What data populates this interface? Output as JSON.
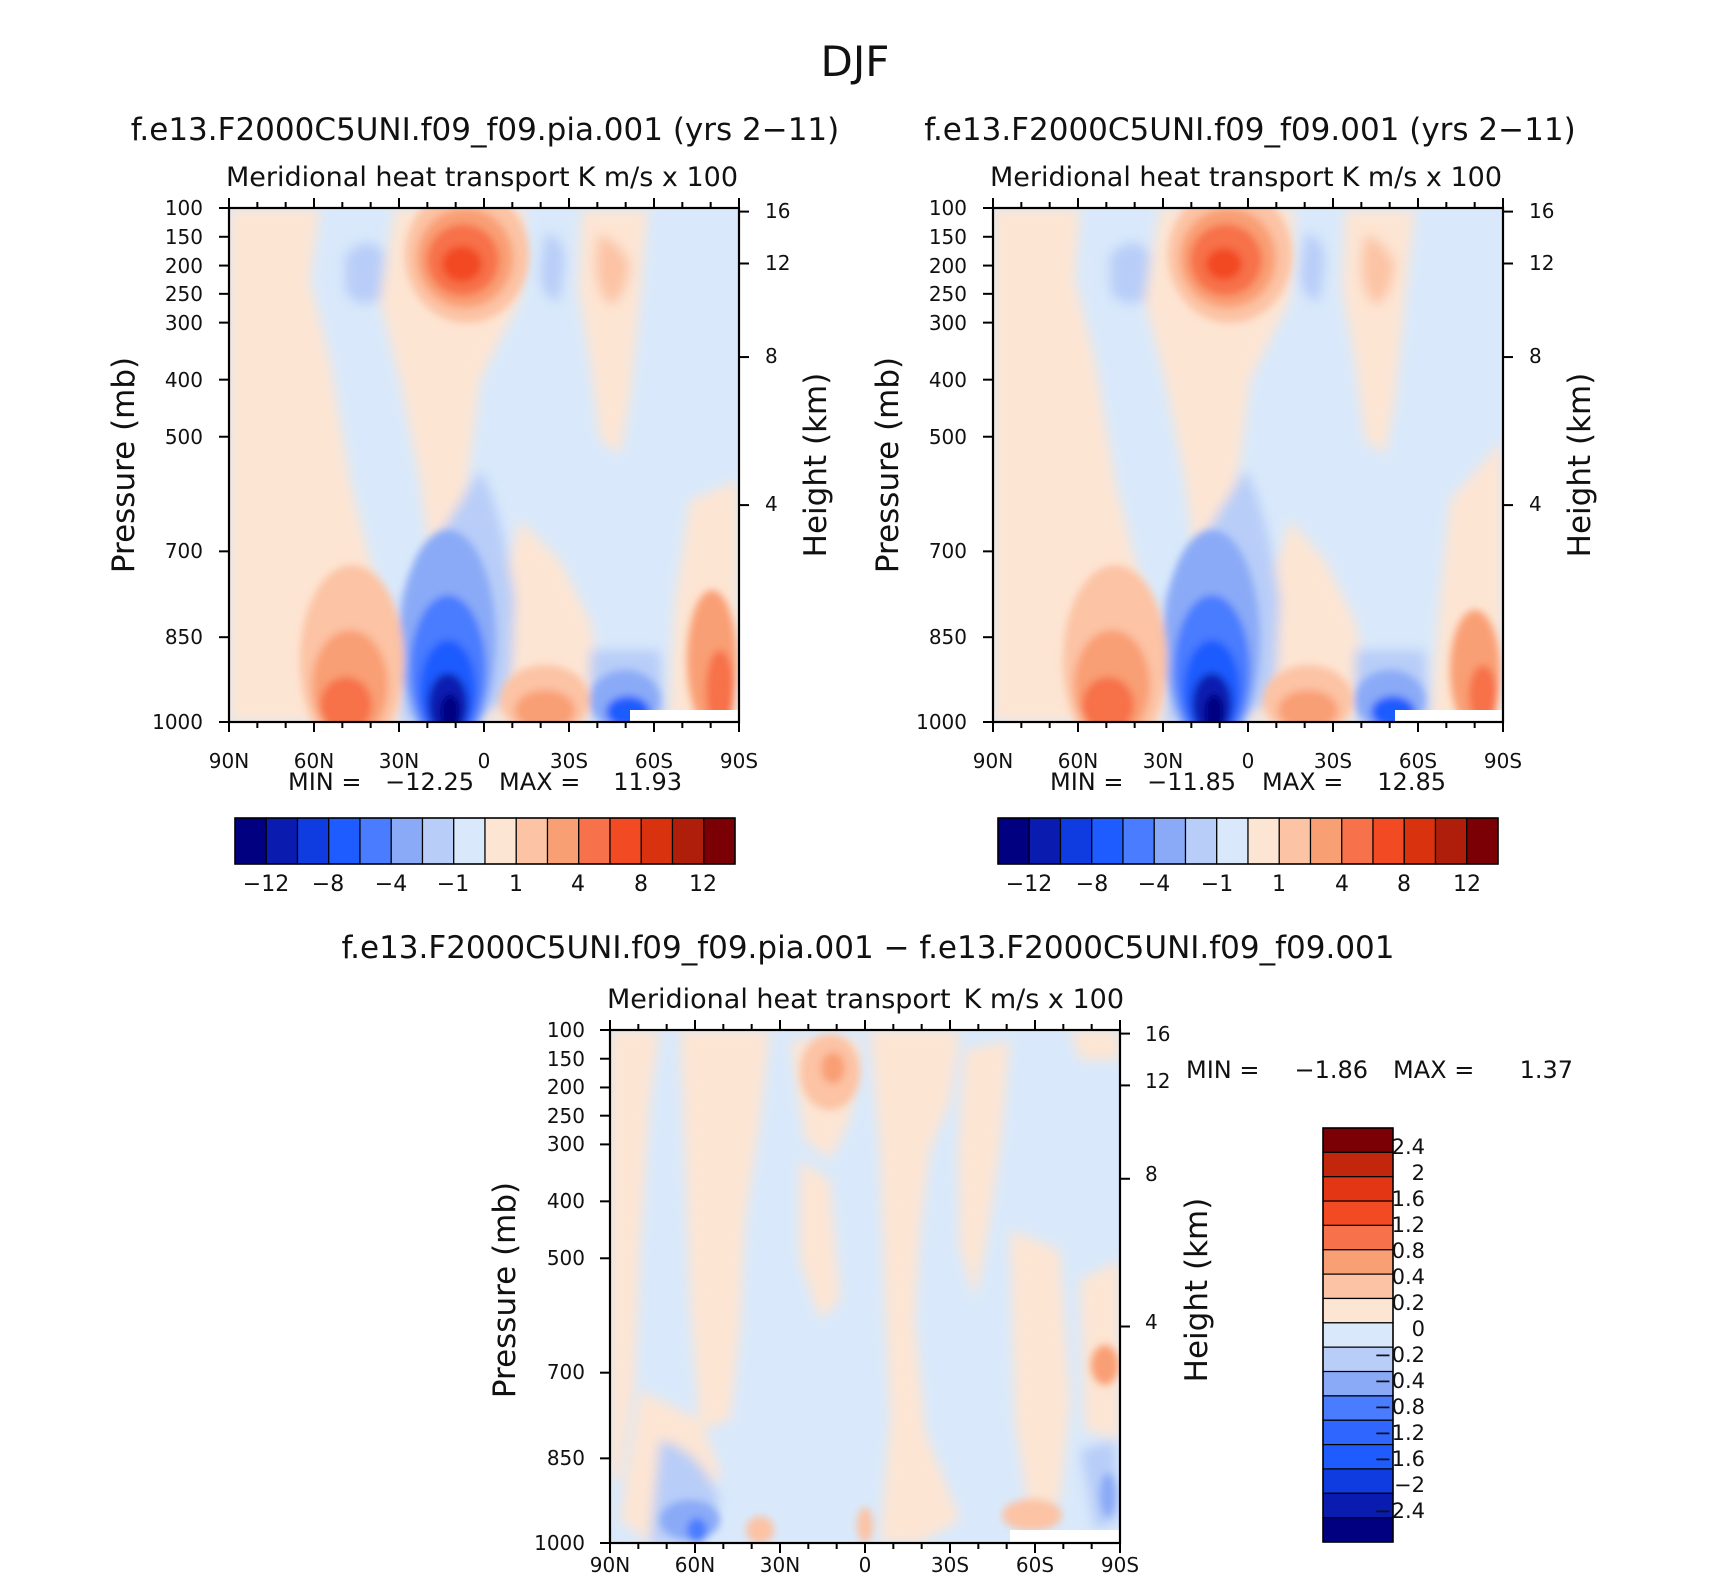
{
  "figure": {
    "title": "DJF"
  },
  "colors": {
    "levels13": [
      "#000080",
      "#0a1cb0",
      "#0f3ce0",
      "#1e5cff",
      "#4a7cff",
      "#8aaaf7",
      "#b8cdf8",
      "#d9e9fb",
      "#fde5d3",
      "#fcc3a4",
      "#f99f74",
      "#f7714a",
      "#f24a22",
      "#d8320f",
      "#ae1e0a",
      "#7a0006"
    ],
    "levels16": [
      "#000080",
      "#0a1cb0",
      "#0f3ce0",
      "#1e5cff",
      "#2f66ff",
      "#4a7cff",
      "#8aaaf7",
      "#b8cdf8",
      "#d9e9fb",
      "#fde5d3",
      "#fcc3a4",
      "#f99f74",
      "#f7714a",
      "#f24a22",
      "#e23614",
      "#c2260c",
      "#7a0006"
    ]
  },
  "chart_data": [
    {
      "type": "heatmap",
      "title": "f.e13.F2000C5UNI.f09_f09.pia.001 (yrs 2−11)",
      "subtitle_left": "Meridional heat transport",
      "subtitle_right": "K m/s x 100",
      "xlabel": "",
      "ylabel": "Pressure (mb)",
      "ylabel_right": "Height (km)",
      "x_ticks": [
        "90N",
        "60N",
        "30N",
        "0",
        "30S",
        "60S",
        "90S"
      ],
      "y_ticks": [
        "100",
        "150",
        "200",
        "250",
        "300",
        "400",
        "500",
        "700",
        "850",
        "1000"
      ],
      "y_right_ticks": [
        "16",
        "12",
        "8",
        "4"
      ],
      "stats": {
        "min_label": "MIN =",
        "min": "−12.25",
        "max_label": "MAX =",
        "max": "11.93"
      },
      "colorbar_labels": [
        "−12",
        "−8",
        "−4",
        "−1",
        "1",
        "4",
        "8",
        "12"
      ],
      "features": [
        {
          "lat": 5,
          "p": 200,
          "value": 9
        },
        {
          "lat": 10,
          "p": 950,
          "value": -12
        },
        {
          "lat": 45,
          "p": 960,
          "value": 8
        },
        {
          "lat": -25,
          "p": 980,
          "value": 6
        },
        {
          "lat": -50,
          "p": 980,
          "value": -6
        },
        {
          "lat": -53,
          "p": 220,
          "value": 3
        },
        {
          "lat": 35,
          "p": 200,
          "value": -3
        }
      ]
    },
    {
      "type": "heatmap",
      "title": "f.e13.F2000C5UNI.f09_f09.001 (yrs 2−11)",
      "subtitle_left": "Meridional heat transport",
      "subtitle_right": "K m/s x 100",
      "xlabel": "",
      "ylabel": "Pressure (mb)",
      "ylabel_right": "Height (km)",
      "x_ticks": [
        "90N",
        "60N",
        "30N",
        "0",
        "30S",
        "60S",
        "90S"
      ],
      "y_ticks": [
        "100",
        "150",
        "200",
        "250",
        "300",
        "400",
        "500",
        "700",
        "850",
        "1000"
      ],
      "y_right_ticks": [
        "16",
        "12",
        "8",
        "4"
      ],
      "stats": {
        "min_label": "MIN =",
        "min": "−11.85",
        "max_label": "MAX =",
        "max": "12.85"
      },
      "colorbar_labels": [
        "−12",
        "−8",
        "−4",
        "−1",
        "1",
        "4",
        "8",
        "12"
      ],
      "features": [
        {
          "lat": 5,
          "p": 200,
          "value": 10
        },
        {
          "lat": 10,
          "p": 950,
          "value": -11
        },
        {
          "lat": 45,
          "p": 960,
          "value": 8
        },
        {
          "lat": -25,
          "p": 980,
          "value": 6
        },
        {
          "lat": -50,
          "p": 980,
          "value": -6
        },
        {
          "lat": -53,
          "p": 220,
          "value": 3
        },
        {
          "lat": 35,
          "p": 200,
          "value": -3
        }
      ]
    },
    {
      "type": "heatmap",
      "title": "f.e13.F2000C5UNI.f09_f09.pia.001 − f.e13.F2000C5UNI.f09_f09.001",
      "subtitle_left": "Meridional heat transport",
      "subtitle_right": "K m/s x 100",
      "xlabel": "",
      "ylabel": "Pressure (mb)",
      "ylabel_right": "Height (km)",
      "x_ticks": [
        "90N",
        "60N",
        "30N",
        "0",
        "30S",
        "60S",
        "90S"
      ],
      "y_ticks": [
        "100",
        "150",
        "200",
        "250",
        "300",
        "400",
        "500",
        "700",
        "850",
        "1000"
      ],
      "y_right_ticks": [
        "16",
        "12",
        "8",
        "4"
      ],
      "stats": {
        "min_label": "MIN =",
        "min": "−1.86",
        "max_label": "MAX =",
        "max": "1.37"
      },
      "colorbar_labels": [
        "2.4",
        "2",
        "1.6",
        "1.2",
        "0.8",
        "0.4",
        "0.2",
        "0",
        "−0.2",
        "−0.4",
        "−0.8",
        "−1.2",
        "−1.6",
        "−2",
        "−2.4"
      ],
      "features": [
        {
          "lat": 12,
          "p": 170,
          "value": 1.2
        },
        {
          "lat": 65,
          "p": 970,
          "value": -0.8
        },
        {
          "lat": -60,
          "p": 990,
          "value": 0.4
        },
        {
          "lat": -85,
          "p": 650,
          "value": 0.8
        }
      ]
    }
  ]
}
